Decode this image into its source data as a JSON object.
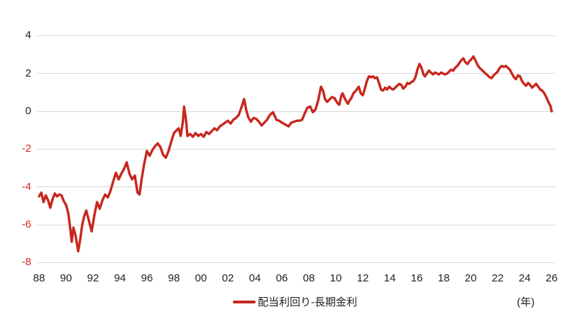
{
  "chart": {
    "title": "",
    "legend_label": "配当利回り-長期金利",
    "unit_label": "(年)",
    "colors": {
      "line": "#C7271E",
      "negative_tick_label": "#CE2920",
      "positive_tick_label": "#1F1F1F",
      "gridline": "#D9D9D9",
      "background": "#FFFFFF"
    }
  },
  "chart_data": {
    "type": "line",
    "title": "",
    "xlabel": "(年)",
    "ylabel": "",
    "grid": "horizontal-only",
    "legend_position": "bottom-center",
    "y_axis": {
      "ticks": [
        4,
        2,
        0,
        -2,
        -4,
        -6,
        -8
      ],
      "range": [
        -8,
        4
      ],
      "negative_labels_in_red": true
    },
    "x_axis": {
      "ticks": [
        {
          "year": 1988,
          "label": "88"
        },
        {
          "year": 1990,
          "label": "90"
        },
        {
          "year": 1992,
          "label": "92"
        },
        {
          "year": 1994,
          "label": "94"
        },
        {
          "year": 1996,
          "label": "96"
        },
        {
          "year": 1998,
          "label": "98"
        },
        {
          "year": 2000,
          "label": "00"
        },
        {
          "year": 2002,
          "label": "02"
        },
        {
          "year": 2004,
          "label": "04"
        },
        {
          "year": 2006,
          "label": "06"
        },
        {
          "year": 2008,
          "label": "08"
        },
        {
          "year": 2010,
          "label": "10"
        },
        {
          "year": 2012,
          "label": "12"
        },
        {
          "year": 2014,
          "label": "14"
        },
        {
          "year": 2016,
          "label": "16"
        },
        {
          "year": 2018,
          "label": "18"
        },
        {
          "year": 2020,
          "label": "20"
        },
        {
          "year": 2022,
          "label": "22"
        },
        {
          "year": 2024,
          "label": "24"
        },
        {
          "year": 2026,
          "label": "26"
        }
      ],
      "range": [
        1988,
        2026.3
      ]
    },
    "series": [
      {
        "name": "配当利回り-長期金利",
        "color": "#C7271E",
        "points": [
          [
            1988.0,
            -4.5
          ],
          [
            1988.17,
            -4.3
          ],
          [
            1988.33,
            -4.8
          ],
          [
            1988.5,
            -4.45
          ],
          [
            1988.67,
            -4.7
          ],
          [
            1988.83,
            -5.1
          ],
          [
            1989.0,
            -4.65
          ],
          [
            1989.17,
            -4.35
          ],
          [
            1989.33,
            -4.5
          ],
          [
            1989.5,
            -4.4
          ],
          [
            1989.67,
            -4.45
          ],
          [
            1989.83,
            -4.75
          ],
          [
            1990.0,
            -4.95
          ],
          [
            1990.17,
            -5.4
          ],
          [
            1990.33,
            -6.3
          ],
          [
            1990.42,
            -6.9
          ],
          [
            1990.55,
            -6.15
          ],
          [
            1990.7,
            -6.55
          ],
          [
            1990.9,
            -7.4
          ],
          [
            1991.05,
            -6.8
          ],
          [
            1991.2,
            -6.0
          ],
          [
            1991.35,
            -5.55
          ],
          [
            1991.5,
            -5.25
          ],
          [
            1991.7,
            -5.8
          ],
          [
            1991.9,
            -6.35
          ],
          [
            1992.1,
            -5.5
          ],
          [
            1992.3,
            -4.8
          ],
          [
            1992.5,
            -5.15
          ],
          [
            1992.7,
            -4.7
          ],
          [
            1992.9,
            -4.4
          ],
          [
            1993.1,
            -4.55
          ],
          [
            1993.3,
            -4.2
          ],
          [
            1993.5,
            -3.7
          ],
          [
            1993.7,
            -3.25
          ],
          [
            1993.9,
            -3.6
          ],
          [
            1994.1,
            -3.3
          ],
          [
            1994.3,
            -3.05
          ],
          [
            1994.5,
            -2.7
          ],
          [
            1994.7,
            -3.3
          ],
          [
            1994.9,
            -3.6
          ],
          [
            1995.1,
            -3.4
          ],
          [
            1995.3,
            -4.3
          ],
          [
            1995.45,
            -4.4
          ],
          [
            1995.6,
            -3.6
          ],
          [
            1995.8,
            -2.75
          ],
          [
            1996.0,
            -2.1
          ],
          [
            1996.2,
            -2.35
          ],
          [
            1996.4,
            -2.05
          ],
          [
            1996.6,
            -1.85
          ],
          [
            1996.8,
            -1.7
          ],
          [
            1997.0,
            -1.9
          ],
          [
            1997.2,
            -2.3
          ],
          [
            1997.4,
            -2.45
          ],
          [
            1997.6,
            -2.1
          ],
          [
            1997.8,
            -1.6
          ],
          [
            1998.0,
            -1.15
          ],
          [
            1998.2,
            -1.0
          ],
          [
            1998.35,
            -0.9
          ],
          [
            1998.5,
            -1.3
          ],
          [
            1998.65,
            -0.6
          ],
          [
            1998.75,
            0.25
          ],
          [
            1998.9,
            -0.5
          ],
          [
            1999.0,
            -1.3
          ],
          [
            1999.2,
            -1.2
          ],
          [
            1999.4,
            -1.35
          ],
          [
            1999.6,
            -1.15
          ],
          [
            1999.8,
            -1.3
          ],
          [
            2000.0,
            -1.2
          ],
          [
            2000.2,
            -1.35
          ],
          [
            2000.4,
            -1.1
          ],
          [
            2000.6,
            -1.2
          ],
          [
            2000.8,
            -1.05
          ],
          [
            2001.0,
            -0.9
          ],
          [
            2001.2,
            -1.0
          ],
          [
            2001.4,
            -0.8
          ],
          [
            2001.6,
            -0.7
          ],
          [
            2001.8,
            -0.6
          ],
          [
            2002.0,
            -0.5
          ],
          [
            2002.2,
            -0.65
          ],
          [
            2002.4,
            -0.45
          ],
          [
            2002.6,
            -0.35
          ],
          [
            2002.8,
            -0.2
          ],
          [
            2003.0,
            0.2
          ],
          [
            2003.2,
            0.65
          ],
          [
            2003.35,
            0.1
          ],
          [
            2003.5,
            -0.3
          ],
          [
            2003.7,
            -0.55
          ],
          [
            2003.9,
            -0.35
          ],
          [
            2004.1,
            -0.4
          ],
          [
            2004.3,
            -0.55
          ],
          [
            2004.5,
            -0.75
          ],
          [
            2004.7,
            -0.6
          ],
          [
            2004.9,
            -0.45
          ],
          [
            2005.1,
            -0.2
          ],
          [
            2005.35,
            -0.05
          ],
          [
            2005.6,
            -0.45
          ],
          [
            2005.8,
            -0.5
          ],
          [
            2006.0,
            -0.6
          ],
          [
            2006.25,
            -0.7
          ],
          [
            2006.5,
            -0.8
          ],
          [
            2006.7,
            -0.6
          ],
          [
            2006.9,
            -0.55
          ],
          [
            2007.1,
            -0.5
          ],
          [
            2007.3,
            -0.5
          ],
          [
            2007.5,
            -0.45
          ],
          [
            2007.7,
            -0.1
          ],
          [
            2007.9,
            0.2
          ],
          [
            2008.1,
            0.25
          ],
          [
            2008.3,
            -0.05
          ],
          [
            2008.5,
            0.1
          ],
          [
            2008.7,
            0.6
          ],
          [
            2008.9,
            1.3
          ],
          [
            2009.05,
            1.1
          ],
          [
            2009.2,
            0.65
          ],
          [
            2009.35,
            0.5
          ],
          [
            2009.5,
            0.6
          ],
          [
            2009.7,
            0.75
          ],
          [
            2009.9,
            0.7
          ],
          [
            2010.1,
            0.45
          ],
          [
            2010.25,
            0.35
          ],
          [
            2010.4,
            0.8
          ],
          [
            2010.5,
            0.95
          ],
          [
            2010.65,
            0.7
          ],
          [
            2010.8,
            0.5
          ],
          [
            2010.9,
            0.4
          ],
          [
            2011.0,
            0.55
          ],
          [
            2011.15,
            0.7
          ],
          [
            2011.3,
            0.95
          ],
          [
            2011.5,
            1.1
          ],
          [
            2011.7,
            1.3
          ],
          [
            2011.85,
            0.95
          ],
          [
            2012.0,
            0.85
          ],
          [
            2012.15,
            1.2
          ],
          [
            2012.3,
            1.6
          ],
          [
            2012.45,
            1.85
          ],
          [
            2012.6,
            1.8
          ],
          [
            2012.75,
            1.85
          ],
          [
            2012.9,
            1.75
          ],
          [
            2013.05,
            1.8
          ],
          [
            2013.2,
            1.5
          ],
          [
            2013.35,
            1.15
          ],
          [
            2013.5,
            1.1
          ],
          [
            2013.65,
            1.25
          ],
          [
            2013.8,
            1.15
          ],
          [
            2013.95,
            1.3
          ],
          [
            2014.1,
            1.2
          ],
          [
            2014.25,
            1.15
          ],
          [
            2014.4,
            1.25
          ],
          [
            2014.55,
            1.35
          ],
          [
            2014.7,
            1.45
          ],
          [
            2014.85,
            1.4
          ],
          [
            2015.0,
            1.2
          ],
          [
            2015.15,
            1.3
          ],
          [
            2015.3,
            1.5
          ],
          [
            2015.45,
            1.45
          ],
          [
            2015.6,
            1.55
          ],
          [
            2015.75,
            1.6
          ],
          [
            2015.9,
            1.8
          ],
          [
            2016.05,
            2.2
          ],
          [
            2016.2,
            2.5
          ],
          [
            2016.35,
            2.3
          ],
          [
            2016.5,
            1.95
          ],
          [
            2016.6,
            1.85
          ],
          [
            2016.75,
            2.0
          ],
          [
            2016.9,
            2.15
          ],
          [
            2017.05,
            2.05
          ],
          [
            2017.2,
            1.95
          ],
          [
            2017.35,
            2.05
          ],
          [
            2017.5,
            2.0
          ],
          [
            2017.65,
            1.95
          ],
          [
            2017.8,
            2.05
          ],
          [
            2017.95,
            2.0
          ],
          [
            2018.1,
            1.95
          ],
          [
            2018.25,
            2.0
          ],
          [
            2018.4,
            2.1
          ],
          [
            2018.55,
            2.2
          ],
          [
            2018.7,
            2.15
          ],
          [
            2018.85,
            2.3
          ],
          [
            2019.0,
            2.4
          ],
          [
            2019.15,
            2.55
          ],
          [
            2019.3,
            2.7
          ],
          [
            2019.45,
            2.8
          ],
          [
            2019.6,
            2.6
          ],
          [
            2019.75,
            2.5
          ],
          [
            2019.9,
            2.65
          ],
          [
            2020.05,
            2.75
          ],
          [
            2020.2,
            2.9
          ],
          [
            2020.35,
            2.7
          ],
          [
            2020.5,
            2.45
          ],
          [
            2020.65,
            2.3
          ],
          [
            2020.8,
            2.2
          ],
          [
            2020.95,
            2.1
          ],
          [
            2021.1,
            2.0
          ],
          [
            2021.25,
            1.9
          ],
          [
            2021.4,
            1.8
          ],
          [
            2021.55,
            1.75
          ],
          [
            2021.7,
            1.9
          ],
          [
            2021.85,
            2.0
          ],
          [
            2022.0,
            2.1
          ],
          [
            2022.15,
            2.3
          ],
          [
            2022.3,
            2.4
          ],
          [
            2022.45,
            2.35
          ],
          [
            2022.6,
            2.4
          ],
          [
            2022.75,
            2.3
          ],
          [
            2022.9,
            2.2
          ],
          [
            2023.05,
            2.0
          ],
          [
            2023.2,
            1.8
          ],
          [
            2023.35,
            1.7
          ],
          [
            2023.5,
            1.9
          ],
          [
            2023.65,
            1.85
          ],
          [
            2023.8,
            1.6
          ],
          [
            2023.95,
            1.45
          ],
          [
            2024.1,
            1.35
          ],
          [
            2024.25,
            1.5
          ],
          [
            2024.4,
            1.4
          ],
          [
            2024.55,
            1.25
          ],
          [
            2024.7,
            1.35
          ],
          [
            2024.85,
            1.45
          ],
          [
            2025.0,
            1.3
          ],
          [
            2025.15,
            1.15
          ],
          [
            2025.3,
            1.1
          ],
          [
            2025.45,
            0.95
          ],
          [
            2025.6,
            0.75
          ],
          [
            2025.75,
            0.5
          ],
          [
            2025.9,
            0.3
          ],
          [
            2026.0,
            0.0
          ]
        ]
      }
    ]
  }
}
